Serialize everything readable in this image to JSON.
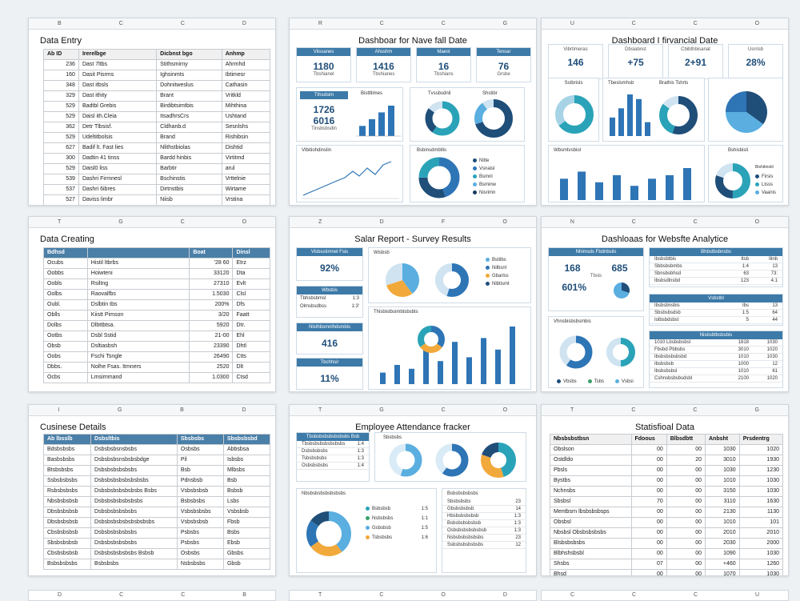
{
  "colors": {
    "blue": "#2e75b6",
    "dark": "#1f4e79",
    "teal": "#2aa3b8",
    "light": "#5aaee0",
    "orange": "#f2a93b",
    "header": "#4a7fa8",
    "green": "#3aa06b"
  },
  "cards": [
    {
      "colbar": [
        "B",
        "C",
        "C",
        "D"
      ],
      "title": "Data Entry",
      "rownums": [
        "1",
        "3",
        "4",
        "6",
        "6",
        "7",
        "8",
        "9",
        "6",
        "7",
        "8",
        "9",
        "10",
        "11"
      ],
      "headers": [
        "Ab ID",
        "Irerelbge",
        "Dicbnst bgo",
        "Anhmp"
      ],
      "rows": [
        [
          "236",
          "Dast 7ltbs",
          "Stithsmirny",
          "Ahrmhd"
        ],
        [
          "160",
          "Dasit Pisrms",
          "Ighsinmts",
          "Ibtimesr"
        ],
        [
          "348",
          "Dast itbsls",
          "Dohnitweslus",
          "Cathasin"
        ],
        [
          "329",
          "Dast ithity",
          "Brant",
          "Vritkld"
        ],
        [
          "529",
          "Badtbl Grebis",
          "Birdibtsimtbis",
          "Mihthina"
        ],
        [
          "529",
          "Daisl ith.Cleia",
          "ItsadhrsCrs",
          "Ushtand"
        ],
        [
          "362",
          "Detr Tlbsisf.",
          "Cldhanb.d",
          "Sesnlshs"
        ],
        [
          "529",
          "Udeltitbolsis",
          "Brand",
          "Rishibsin"
        ],
        [
          "627",
          "Badif lt. Fast lies",
          "Nlithstbiolas",
          "Dishtid"
        ],
        [
          "300",
          "Dadtin 41 tinss",
          "Bardd hinbis",
          "Virtitmd"
        ],
        [
          "529",
          "Daisl0 liss",
          "Barbtir",
          "arul"
        ],
        [
          "539",
          "Dashri Firmnesl",
          "Bschinstis",
          "Vrttelnie"
        ],
        [
          "537",
          "Dashri 6ibres",
          "Dirtnstbis",
          "Wirtame"
        ],
        [
          "527",
          "Daviss limbr",
          "Niisb",
          "Vrstina"
        ]
      ]
    },
    {
      "colbar": [
        "R",
        "C",
        "C",
        "G"
      ],
      "title": "Dashboar for Nave fall Date",
      "kpis": [
        {
          "label": "Viissanes",
          "value": "1180",
          "sub": "Tbshianel"
        },
        {
          "label": "Ahsshm",
          "value": "1416",
          "sub": "Tbshianes"
        },
        {
          "label": "Maest",
          "value": "16",
          "sub": "Tbshians"
        },
        {
          "label": "Tensar",
          "value": "76",
          "sub": "Grsbe"
        }
      ],
      "panel_a": {
        "label": "Tthsdsim",
        "v1": "1726",
        "v2": "6016",
        "sub": "Tinsbsbsdin",
        "chart_title": "Bistltlimes"
      },
      "panel_b": {
        "title": "Tvssbsdnil",
        "title2": "Shstibr"
      },
      "panel_c": {
        "title": "Vtbitiohdinslin"
      },
      "panel_d": {
        "title": "Bsbinsdmbtlis",
        "legend": [
          "Nitte",
          "Vsnaisl",
          "Bsmnl",
          "Bsminw",
          "Nisrimn"
        ]
      }
    },
    {
      "colbar": [
        "U",
        "C",
        "C",
        "O"
      ],
      "title": "Dashboard I firvancial Date",
      "kpis": [
        {
          "label": "Vibrtimeras",
          "value": "146"
        },
        {
          "label": "Dbsiabnst",
          "value": "+75"
        },
        {
          "label": "Cbibthbisanat",
          "value": "2+91"
        },
        {
          "label": "Usrrisb",
          "value": "28%"
        }
      ],
      "panel_a": {
        "title": "Sstbrisls"
      },
      "panel_b": {
        "title": "Tbeslsmhsb",
        "title2": "Brathis Tshrts"
      },
      "panel_c": {
        "title": "Wbsmtvsbiol"
      },
      "panel_d": {
        "title": "Bshisbisli",
        "title2": "Bishibnsbl",
        "legend": [
          "Firsis",
          "Ltsss",
          "Vaanis"
        ]
      }
    },
    {
      "colbar": [
        "T",
        "G",
        "C",
        "O"
      ],
      "title": "Data Creating",
      "rownums": [
        "1",
        "0",
        "2",
        "3",
        "4",
        "5",
        "6",
        "7",
        "8",
        "9",
        "10",
        "11",
        "12"
      ],
      "headers": [
        "Bdhsd",
        "",
        "Boat",
        "Dinsl"
      ],
      "rows": [
        [
          "Ocubs",
          "Histil ltbrbs",
          "'28 60",
          "Etrz"
        ],
        [
          "Oobbs",
          "Hoiwteni",
          "33120",
          "Dta"
        ],
        [
          "Oobls",
          "Rsiltng",
          "27310",
          "Evlt"
        ],
        [
          "Oolbs",
          "Raovalfbs",
          "1.5030",
          "Clsl"
        ],
        [
          "Oubl.",
          "Dslbtin tbs",
          "200%",
          "Dfs"
        ],
        [
          "Oblls",
          "Kiistt Pimson",
          "3/20",
          "Faatt"
        ],
        [
          "Dolbs",
          "Dlbttbtsa.",
          "5920",
          "Dtr."
        ],
        [
          "Ootbs",
          "Dsbl Sstid",
          "21-00",
          "Ehl"
        ],
        [
          "Obsb",
          "Dsltiasbsh",
          "23390",
          "Dhtl"
        ],
        [
          "Oobs",
          "Fschi Tsngle",
          "26490",
          "Ctts"
        ],
        [
          "Dbbs.",
          "Nolhe Fsas. Itmners",
          "2520",
          "Dlt"
        ],
        [
          "Ocbs",
          "Lmsirnmand",
          "1.0300",
          "Ctsd"
        ]
      ]
    },
    {
      "colbar": [
        "Z",
        "D",
        "F",
        "O"
      ],
      "title": "Salar Report - Survey Results",
      "panel_a": {
        "label": "Vlsbsstimnel Fsis",
        "value": "92%"
      },
      "panel_b": {
        "title": "Wbsbis",
        "r1": "Tbhsbsbmsl",
        "v1": "1:3",
        "r2": "Olmsbsdbss",
        "v2": "1:3'"
      },
      "panel_c": {
        "title": "Nlsthbsmnlhdsmbis",
        "value": "416"
      },
      "panel_d": {
        "title": "Tbchhsir",
        "value": "11%"
      },
      "panel_e": {
        "title": "Wisbsb",
        "legend": [
          "Bstilbs",
          "Nilbsnl",
          "Gbarlss",
          "Nlbtismt"
        ]
      },
      "panel_f": {
        "title": "Thisbistbsimbtsbsbts"
      }
    },
    {
      "colbar": [
        "N",
        "C",
        "C",
        "O"
      ],
      "title": "Dashloaas for Websfte Analytice",
      "panel_a": {
        "title": "Nhimsds Fbdnbsils",
        "v1": "168",
        "v2": "685",
        "v3": "601%",
        "sub": "Tbsis"
      },
      "panel_b": {
        "title": "Bhbstbsbnsbs",
        "rows": [
          [
            "Ibsbsbtbis",
            "Itsb",
            "Ilinb"
          ],
          [
            "Sbbsbsbmbs",
            "1:4",
            "13"
          ],
          [
            "Sbnsbsbhsd",
            "63",
            "73:"
          ],
          [
            "Ibsbsdlnsbd",
            "123",
            "4.1"
          ]
        ]
      },
      "panel_c": {
        "title": "Vsbstbl",
        "rows": [
          [
            "Ibsbsbnsbis",
            "Ibs",
            "13"
          ],
          [
            "Sbsbsbsdsb",
            "1:5",
            "64"
          ],
          [
            "Iolbsbdsbst",
            "5",
            "44"
          ]
        ]
      },
      "panel_d": {
        "title": "Nisbsbtbsbsbis",
        "rows": [
          [
            "1010 Lbsbsbsbsl",
            "1818",
            "1030"
          ],
          [
            "Fbsbd Pbbsbs",
            "3010",
            "1020"
          ],
          [
            "Ibsbsbsbsbsbd",
            "1010",
            "1030"
          ],
          [
            "Ibsbsbsb",
            "1000",
            "12"
          ],
          [
            "Ibsbsbsbsl",
            "1010",
            "61"
          ],
          [
            "Cshnsbsbsbsdsbl",
            "2100",
            "1020"
          ]
        ]
      },
      "panel_e": {
        "title": "Vhnsbisbsbsmbis",
        "legend": [
          "Vbsbs",
          "Tsbs",
          "Vsbsi"
        ]
      }
    },
    {
      "colbar": [
        "I",
        "G",
        "B",
        "D"
      ],
      "title": "Cusinese Details",
      "rownums": [
        "1",
        "2",
        "3",
        "4",
        "5",
        "6",
        "7",
        "8",
        "9",
        "10",
        "11",
        "12",
        "13",
        "14"
      ],
      "headers": [
        "Ab lbsslb",
        "Dsbsltbis",
        "Sbsbsbs",
        "Sbsbsbsbd"
      ],
      "rows": [
        [
          "Bdsbsbsbs",
          "Dsbsbsbsnsbsbs",
          "Osbsbs",
          "Abbsbsa"
        ],
        [
          "Basbsbsbs",
          "Dsbsbsbsnsbsbsbdge",
          "Pil",
          "Isbsbs"
        ],
        [
          "Btsbsbsbs",
          "Dsbsbsbsbsbsbs",
          "Bsb",
          "Mlbsbs"
        ],
        [
          "Ssbsbsbsbs",
          "Dsbsbsbsbsbsbsbsbs",
          "Pdnsbsb",
          "Bsb"
        ],
        [
          "Rsbsbsbsbs",
          "Dsbsbsbsbsbsbsbs Bsbs",
          "Vsbsbsbsb",
          "Bsbsb"
        ],
        [
          "Nbsbsbsbsb",
          "Dsbsbsbsbsbsbsbs",
          "Bsbsbsbs",
          "Lsbs"
        ],
        [
          "Dbsbsbsbsb",
          "Dsbsbsbsbsbsbs",
          "Vsbsbsbsbs",
          "Vsbsbsb"
        ],
        [
          "Dbsbsbsbsb",
          "Dsbsbsbsbsbsbsbsbsbs",
          "Vsbsbsbsb",
          "Fbsb"
        ],
        [
          "Cbsbsbsbsb",
          "Dsbsbsbsbsbsbs",
          "Psbsbs",
          "Bsbs"
        ],
        [
          "Sbsbsbsbsb",
          "Dsbsbsbsbsbsbs",
          "Psbsbs",
          "Ebsb"
        ],
        [
          "Cbsbsbsbsb",
          "Dsbsbsbsbsbsbs Bsbsb",
          "Osbsbs",
          "Gbsbs"
        ],
        [
          "Bsbsbsbsbs",
          "Bsbsbsbs",
          "Nsbsbsbs",
          "Gbsb"
        ]
      ]
    },
    {
      "colbar": [
        "T",
        "G",
        "C",
        "O"
      ],
      "title": "Employee Attendance fracker",
      "panel_a": {
        "title": "Tbsbsbsbsbsbsbsbs Bsb",
        "rows": [
          [
            "Tbsbsbsbsbsbsbsbs",
            "1:4"
          ],
          [
            "Dsbsbsbsbs",
            "1:3"
          ],
          [
            "Tsbsbsbsbs",
            "1:3"
          ],
          [
            "Osbsbsbsbs",
            "1:4"
          ]
        ]
      },
      "panel_b": {
        "title": "Sbsbsbs"
      },
      "panel_c": {
        "title": "Nbsbsbsbsbsbsbsbs",
        "legend": [
          "Bsbsbsb",
          "Nsbsbsbs",
          "Gsbsbsb",
          "Tsbsbsbs"
        ],
        "vals": [
          "1:5",
          "1:1",
          "1:5",
          "1:6"
        ]
      },
      "panel_d": {
        "title": "Bsbsbsbsbsbs",
        "rows": [
          [
            "Sbsbsbsbs",
            "23"
          ],
          [
            "Gbsbsbsbsb",
            "14"
          ],
          [
            "Hbsbsbsbsbsb",
            "1:3"
          ],
          [
            "Bsbsbsbsbsbsb",
            "1:3"
          ],
          [
            "Osbsbsbsbsbsbsb",
            "1:3"
          ],
          [
            "Nsbsbsbsbsbsbs",
            "23"
          ],
          [
            "Ssbsbsbsbsbsbs",
            "12"
          ]
        ]
      }
    },
    {
      "colbar": [
        "T",
        "C",
        "C",
        "G"
      ],
      "title": "Statisfioal Data",
      "headers": [
        "Nbsbsbstbsn",
        "Fdoous",
        "Blbsdbtt",
        "Anbsht",
        "Prsdentrg"
      ],
      "rows": [
        [
          "Obslson",
          "00",
          "00",
          "1030",
          "1020"
        ],
        [
          "Ostdldo",
          "00",
          "20",
          "3010",
          "1930"
        ],
        [
          "Pbsls",
          "00",
          "00",
          "1030",
          "1230"
        ],
        [
          "Bystbs",
          "00",
          "00",
          "1010",
          "1030"
        ],
        [
          "Nchnsbs",
          "00",
          "00",
          "3150",
          "1030"
        ],
        [
          "Sbsbsl",
          "70",
          "00",
          "3110",
          "1630"
        ],
        [
          "Mentbsrn lbsbsbsbsps",
          "00",
          "00",
          "2130",
          "1130"
        ],
        [
          "Obsbsl",
          "00",
          "00",
          "1010",
          "101"
        ],
        [
          "Nbsbsl Obsbsbsbsbs",
          "00",
          "00",
          "2010",
          "2010"
        ],
        [
          "Blsbsbsbsbs",
          "00",
          "00",
          "2030",
          "2000"
        ],
        [
          "Blbhshsbsbl",
          "00",
          "00",
          "1090",
          "1030"
        ],
        [
          "Shsbs",
          "07",
          "00",
          "+460",
          "1260"
        ],
        [
          "Bhsd",
          "00",
          "00",
          "1070",
          "1030"
        ]
      ]
    }
  ],
  "bottom": [
    [
      "D",
      "C",
      "C",
      "B"
    ],
    [
      "T",
      "C",
      "O",
      "D"
    ],
    [
      "C",
      "C",
      "C",
      "U"
    ]
  ]
}
